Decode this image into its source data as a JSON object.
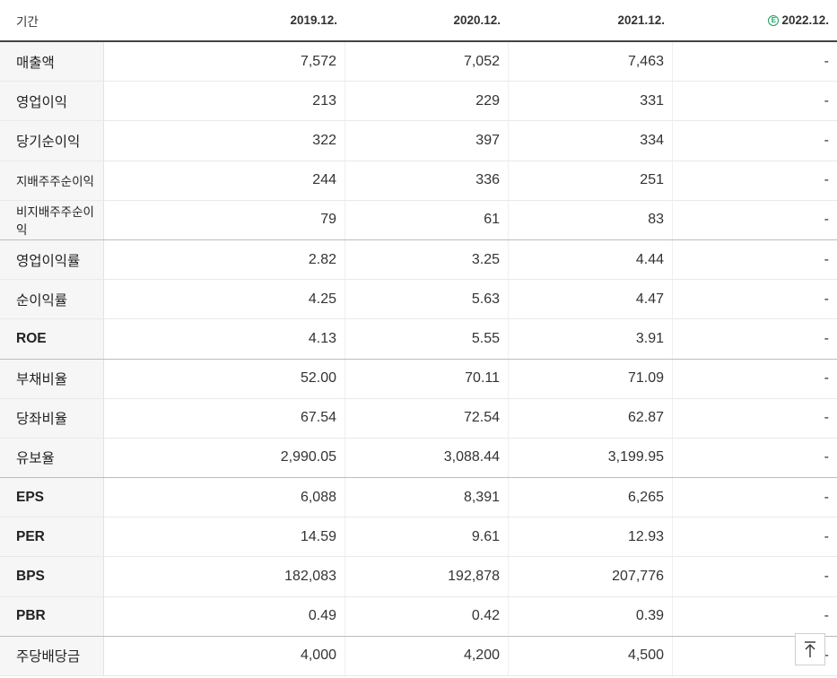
{
  "header": {
    "period_label": "기간",
    "columns": [
      "2019.12.",
      "2020.12.",
      "2021.12.",
      "2022.12."
    ],
    "estimate_badge": "E"
  },
  "rows": [
    {
      "label": "매출액",
      "values": [
        "7,572",
        "7,052",
        "7,463",
        "-"
      ]
    },
    {
      "label": "영업이익",
      "values": [
        "213",
        "229",
        "331",
        "-"
      ]
    },
    {
      "label": "당기순이익",
      "values": [
        "322",
        "397",
        "334",
        "-"
      ]
    },
    {
      "label": "지배주주순이익",
      "values": [
        "244",
        "336",
        "251",
        "-"
      ]
    },
    {
      "label": "비지배주주순이익",
      "values": [
        "79",
        "61",
        "83",
        "-"
      ]
    },
    {
      "label": "영업이익률",
      "values": [
        "2.82",
        "3.25",
        "4.44",
        "-"
      ]
    },
    {
      "label": "순이익률",
      "values": [
        "4.25",
        "5.63",
        "4.47",
        "-"
      ]
    },
    {
      "label": "ROE",
      "values": [
        "4.13",
        "5.55",
        "3.91",
        "-"
      ]
    },
    {
      "label": "부채비율",
      "values": [
        "52.00",
        "70.11",
        "71.09",
        "-"
      ]
    },
    {
      "label": "당좌비율",
      "values": [
        "67.54",
        "72.54",
        "62.87",
        "-"
      ]
    },
    {
      "label": "유보율",
      "values": [
        "2,990.05",
        "3,088.44",
        "3,199.95",
        "-"
      ]
    },
    {
      "label": "EPS",
      "values": [
        "6,088",
        "8,391",
        "6,265",
        "-"
      ]
    },
    {
      "label": "PER",
      "values": [
        "14.59",
        "9.61",
        "12.93",
        "-"
      ]
    },
    {
      "label": "BPS",
      "values": [
        "182,083",
        "192,878",
        "207,776",
        "-"
      ]
    },
    {
      "label": "PBR",
      "values": [
        "0.49",
        "0.42",
        "0.39",
        "-"
      ]
    },
    {
      "label": "주당배당금",
      "values": [
        "4,000",
        "4,200",
        "4,500",
        "-"
      ]
    }
  ],
  "colors": {
    "estimate_accent": "#1aa160",
    "header_rule": "#444444",
    "label_bg": "#f6f6f6"
  },
  "icons": {
    "scroll_top": "arrow-up-to-top-icon",
    "estimate": "estimate-e-icon"
  }
}
